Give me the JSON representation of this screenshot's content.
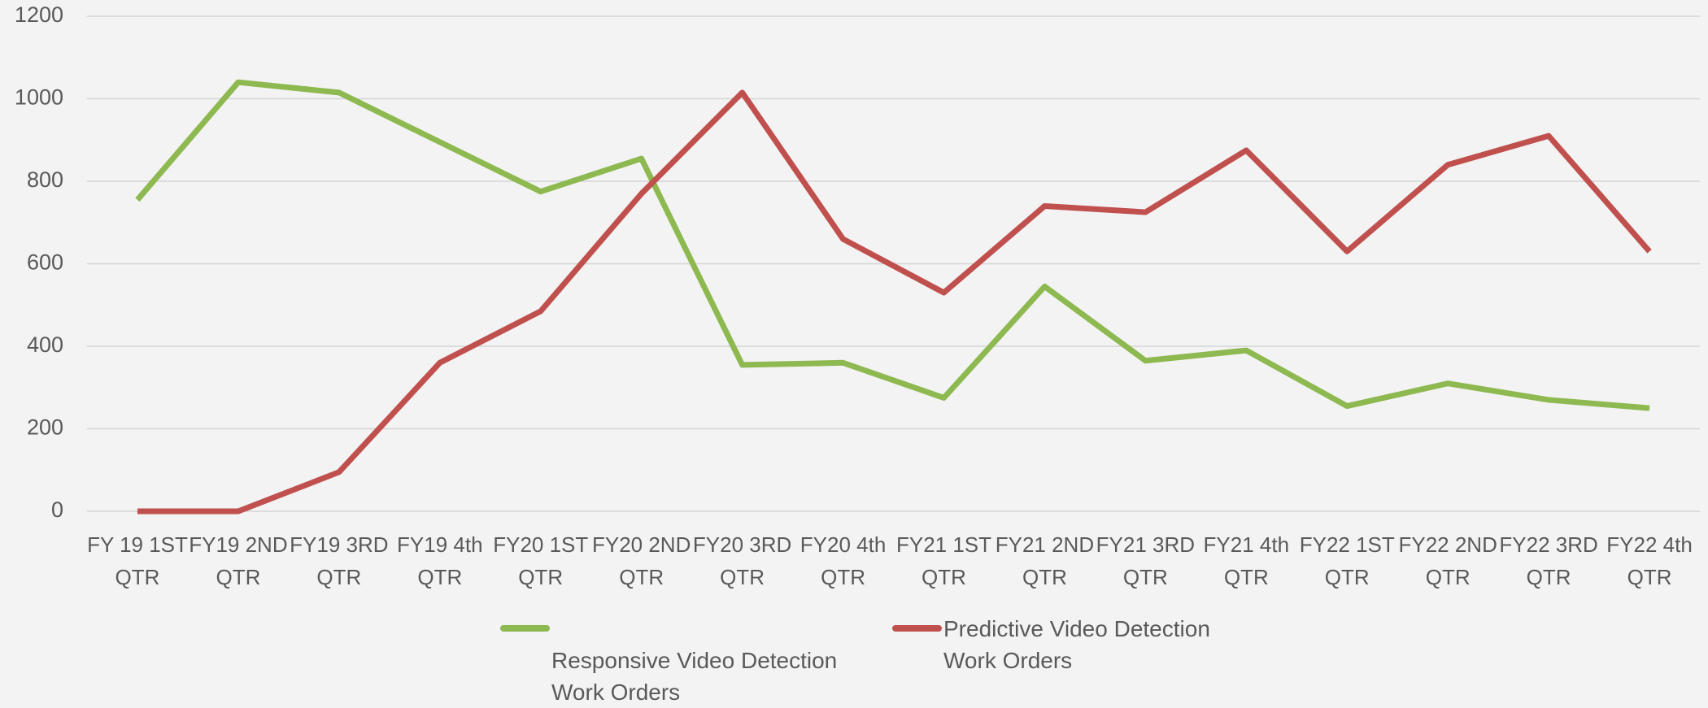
{
  "chart_data": {
    "type": "line",
    "categories": [
      "FY 19 1ST QTR",
      "FY19 2ND QTR",
      "FY19 3RD QTR",
      "FY19 4th QTR",
      "FY20 1ST QTR",
      "FY20 2ND QTR",
      "FY20 3RD QTR",
      "FY20 4th QTR",
      "FY21 1ST QTR",
      "FY21 2ND QTR",
      "FY21 3RD QTR",
      "FY21 4th QTR",
      "FY22 1ST QTR",
      "FY22 2ND QTR",
      "FY22 3RD QTR",
      "FY22 4th QTR"
    ],
    "series": [
      {
        "name": "Responsive Video Detection Work Orders",
        "color": "#8db950",
        "values": [
          755,
          1040,
          1015,
          895,
          775,
          855,
          355,
          360,
          275,
          545,
          365,
          390,
          255,
          310,
          270,
          250
        ]
      },
      {
        "name": "Predictive Video Detection Work Orders",
        "color": "#c0504d",
        "values": [
          0,
          0,
          95,
          360,
          485,
          770,
          1015,
          660,
          530,
          740,
          725,
          875,
          630,
          840,
          910,
          630
        ]
      }
    ],
    "ylim": [
      0,
      1200
    ],
    "yticks": [
      0,
      200,
      400,
      600,
      800,
      1000,
      1200
    ],
    "grid": true,
    "legend": "bottom"
  }
}
